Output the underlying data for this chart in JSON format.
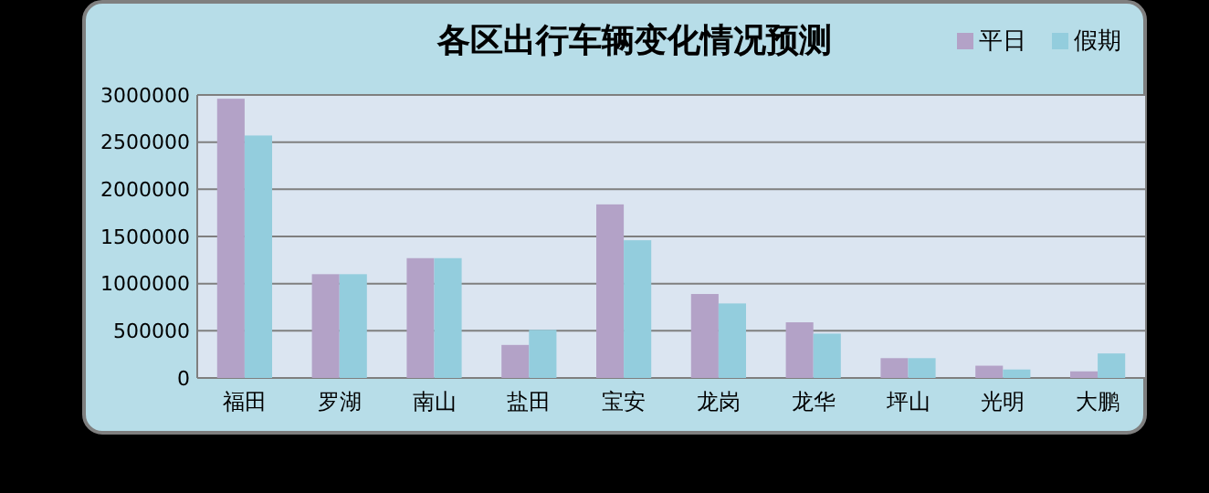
{
  "chart_data": {
    "type": "bar",
    "title": "各区出行车辆变化情况预测",
    "categories": [
      "福田",
      "罗湖",
      "南山",
      "盐田",
      "宝安",
      "龙岗",
      "龙华",
      "坪山",
      "光明",
      "大鹏"
    ],
    "series": [
      {
        "name": "平日",
        "color": "#b3a2c7",
        "values": [
          2960000,
          1100000,
          1270000,
          350000,
          1840000,
          890000,
          590000,
          210000,
          130000,
          70000
        ]
      },
      {
        "name": "假期",
        "color": "#93cddd",
        "values": [
          2570000,
          1100000,
          1270000,
          510000,
          1460000,
          790000,
          470000,
          210000,
          90000,
          260000
        ]
      }
    ],
    "ylim": [
      0,
      3000000
    ],
    "yticks": [
      0,
      500000,
      1000000,
      1500000,
      2000000,
      2500000,
      3000000
    ],
    "grid": "y",
    "legend": "top right"
  }
}
